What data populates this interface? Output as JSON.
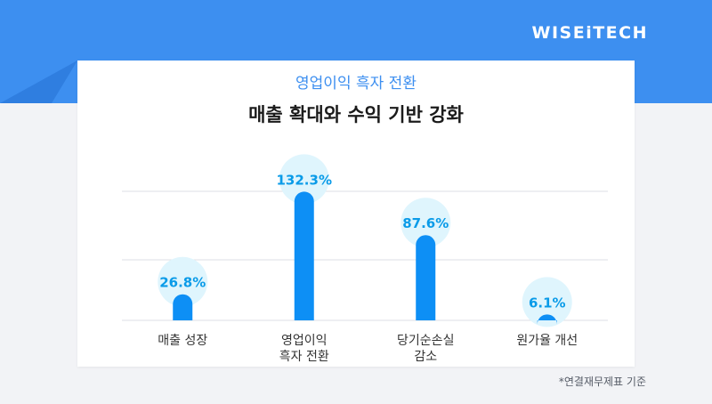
{
  "brand": {
    "logo": "WISEiTECH",
    "primary_color": "#3d8ff0",
    "bar_color": "#0d8ff5",
    "bubble_color": "#dff5fd",
    "label_color": "#0a9be8"
  },
  "header": {
    "subtitle": "영업이익 흑자 전환",
    "title": "매출 확대와 수익 기반 강화"
  },
  "chart_data": {
    "type": "bar",
    "categories": [
      [
        "매출 성장"
      ],
      [
        "영업이익",
        "흑자 전환"
      ],
      [
        "당기순손실",
        "감소"
      ],
      [
        "원가율 개선"
      ]
    ],
    "values": [
      26.8,
      132.3,
      87.6,
      6.1
    ],
    "value_labels": [
      "26.8%",
      "132.3%",
      "87.6%",
      "6.1%"
    ],
    "unit": "%",
    "ylim": [
      0,
      150
    ],
    "grid": true
  },
  "footnote": "*연결재무제표 기준"
}
